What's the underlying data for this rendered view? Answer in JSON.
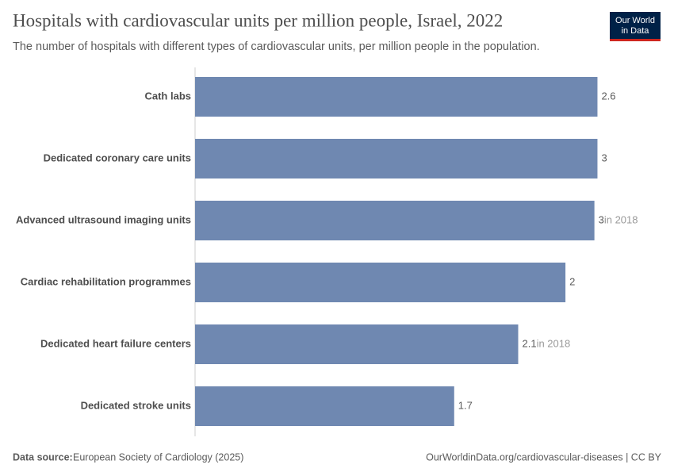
{
  "chart_data": {
    "type": "bar",
    "orientation": "horizontal",
    "title": "Hospitals with cardiovascular units per million people, Israel, 2022",
    "subtitle": "The number of hospitals with different types of cardiovascular units, per million people in the population.",
    "categories": [
      "Cath labs",
      "Dedicated coronary care units",
      "Advanced ultrasound imaging units",
      "Cardiac rehabilitation programmes",
      "Dedicated heart failure centers",
      "Dedicated stroke units"
    ],
    "values": [
      2.64,
      2.64,
      2.62,
      2.43,
      2.12,
      1.7
    ],
    "value_labels": [
      "2.6",
      "3",
      "3",
      "2",
      "2.1",
      "1.7"
    ],
    "value_notes": [
      null,
      null,
      "in 2018",
      null,
      "in 2018",
      null
    ],
    "color": "#6f88b1",
    "xlim": [
      0,
      2.7
    ],
    "logo": [
      "Our World",
      "in Data"
    ],
    "source_label": "Data source:",
    "source": "European Society of Cardiology (2025)",
    "url": "OurWorldinData.org/cardiovascular-diseases | CC BY"
  }
}
